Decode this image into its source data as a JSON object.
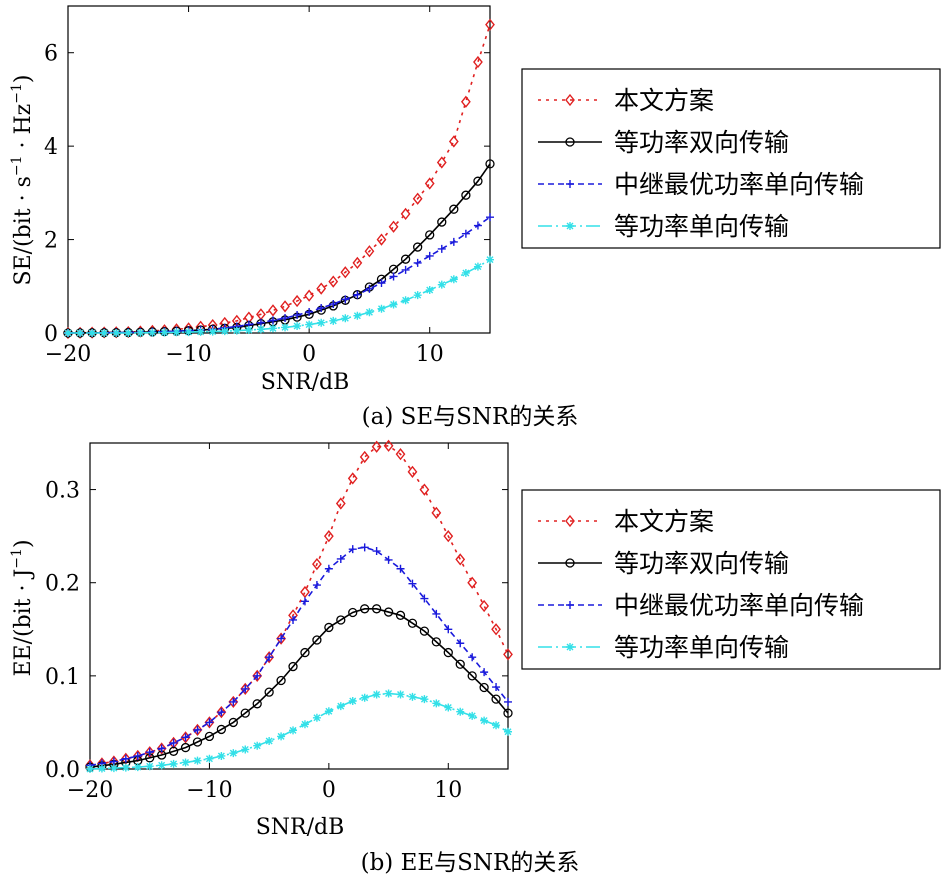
{
  "chart_data": [
    {
      "type": "line",
      "caption": "(a) SE与SNR的关系",
      "xlabel": "SNR/dB",
      "ylabel_prefix": "SE/(bit · s",
      "ylabel_sup1": "−1",
      "ylabel_mid": " · Hz",
      "ylabel_sup2": "−1",
      "ylabel_suffix": ")",
      "xlim": [
        -20,
        15
      ],
      "ylim": [
        0,
        7
      ],
      "xticks": [
        -20,
        -10,
        0,
        10
      ],
      "xtick_labels": [
        "−20",
        "−10",
        "0",
        "10"
      ],
      "yticks": [
        0,
        2,
        4,
        6
      ],
      "ytick_labels": [
        "0",
        "2",
        "4",
        "6"
      ],
      "x": [
        -20,
        15,
        1
      ],
      "series": [
        {
          "name": "本文方案",
          "color": "#e02020",
          "dash": "3,5",
          "marker": "diamond",
          "points": [
            [
              -20,
              0.0
            ],
            [
              -15,
              0.02
            ],
            [
              -12,
              0.06
            ],
            [
              -10,
              0.1
            ],
            [
              -8,
              0.17
            ],
            [
              -6,
              0.26
            ],
            [
              -4,
              0.4
            ],
            [
              -2,
              0.57
            ],
            [
              0,
              0.8
            ],
            [
              2,
              1.1
            ],
            [
              4,
              1.5
            ],
            [
              6,
              2.0
            ],
            [
              8,
              2.55
            ],
            [
              10,
              3.2
            ],
            [
              12,
              4.1
            ],
            [
              14,
              5.8
            ],
            [
              15,
              6.6
            ]
          ]
        },
        {
          "name": "等功率双向传输",
          "color": "#000000",
          "dash": "",
          "marker": "circle",
          "points": [
            [
              -20,
              0.0
            ],
            [
              -15,
              0.01
            ],
            [
              -12,
              0.03
            ],
            [
              -10,
              0.05
            ],
            [
              -8,
              0.08
            ],
            [
              -6,
              0.12
            ],
            [
              -4,
              0.2
            ],
            [
              -2,
              0.28
            ],
            [
              0,
              0.4
            ],
            [
              2,
              0.58
            ],
            [
              4,
              0.82
            ],
            [
              6,
              1.15
            ],
            [
              8,
              1.58
            ],
            [
              10,
              2.1
            ],
            [
              12,
              2.65
            ],
            [
              14,
              3.25
            ],
            [
              15,
              3.62
            ]
          ]
        },
        {
          "name": "中继最优功率单向传输",
          "color": "#1a1adc",
          "dash": "6,4",
          "marker": "plus",
          "points": [
            [
              -20,
              0.0
            ],
            [
              -15,
              0.01
            ],
            [
              -12,
              0.03
            ],
            [
              -10,
              0.05
            ],
            [
              -8,
              0.08
            ],
            [
              -6,
              0.14
            ],
            [
              -4,
              0.22
            ],
            [
              -2,
              0.32
            ],
            [
              0,
              0.45
            ],
            [
              2,
              0.62
            ],
            [
              4,
              0.82
            ],
            [
              6,
              1.07
            ],
            [
              8,
              1.35
            ],
            [
              10,
              1.65
            ],
            [
              12,
              1.95
            ],
            [
              14,
              2.3
            ],
            [
              15,
              2.48
            ]
          ]
        },
        {
          "name": "等功率单向传输",
          "color": "#33e0e8",
          "dash": "14,4,2,4",
          "marker": "star",
          "points": [
            [
              -20,
              0.0
            ],
            [
              -15,
              0.0
            ],
            [
              -12,
              0.01
            ],
            [
              -10,
              0.02
            ],
            [
              -8,
              0.03
            ],
            [
              -6,
              0.05
            ],
            [
              -4,
              0.08
            ],
            [
              -2,
              0.12
            ],
            [
              0,
              0.18
            ],
            [
              2,
              0.26
            ],
            [
              4,
              0.37
            ],
            [
              6,
              0.52
            ],
            [
              8,
              0.7
            ],
            [
              10,
              0.92
            ],
            [
              12,
              1.15
            ],
            [
              14,
              1.42
            ],
            [
              15,
              1.57
            ]
          ]
        }
      ]
    },
    {
      "type": "line",
      "caption": "(b) EE与SNR的关系",
      "xlabel": "SNR/dB",
      "ylabel_prefix": "EE/(bit · J",
      "ylabel_sup1": "−1",
      "ylabel_suffix": ")",
      "xlim": [
        -20,
        15
      ],
      "ylim": [
        0,
        0.35
      ],
      "xticks": [
        -20,
        -10,
        0,
        10
      ],
      "xtick_labels": [
        "−20",
        "−10",
        "0",
        "10"
      ],
      "yticks": [
        0,
        0.1,
        0.2,
        0.3
      ],
      "ytick_labels": [
        "0.0",
        "0.1",
        "0.2",
        "0.3"
      ],
      "series": [
        {
          "name": "本文方案",
          "color": "#e02020",
          "dash": "3,5",
          "marker": "diamond",
          "points": [
            [
              -20,
              0.004
            ],
            [
              -18,
              0.008
            ],
            [
              -16,
              0.014
            ],
            [
              -14,
              0.022
            ],
            [
              -12,
              0.034
            ],
            [
              -10,
              0.05
            ],
            [
              -8,
              0.072
            ],
            [
              -6,
              0.1
            ],
            [
              -4,
              0.14
            ],
            [
              -2,
              0.19
            ],
            [
              0,
              0.25
            ],
            [
              1,
              0.285
            ],
            [
              2,
              0.312
            ],
            [
              3,
              0.335
            ],
            [
              4,
              0.346
            ],
            [
              5,
              0.347
            ],
            [
              6,
              0.338
            ],
            [
              8,
              0.3
            ],
            [
              10,
              0.25
            ],
            [
              12,
              0.2
            ],
            [
              14,
              0.15
            ],
            [
              15,
              0.123
            ]
          ]
        },
        {
          "name": "等功率双向传输",
          "color": "#000000",
          "dash": "",
          "marker": "circle",
          "points": [
            [
              -20,
              0.002
            ],
            [
              -18,
              0.005
            ],
            [
              -16,
              0.009
            ],
            [
              -14,
              0.015
            ],
            [
              -12,
              0.023
            ],
            [
              -10,
              0.035
            ],
            [
              -8,
              0.05
            ],
            [
              -6,
              0.07
            ],
            [
              -4,
              0.095
            ],
            [
              -2,
              0.125
            ],
            [
              0,
              0.152
            ],
            [
              2,
              0.168
            ],
            [
              3,
              0.172
            ],
            [
              4,
              0.172
            ],
            [
              6,
              0.165
            ],
            [
              8,
              0.148
            ],
            [
              10,
              0.125
            ],
            [
              12,
              0.1
            ],
            [
              14,
              0.075
            ],
            [
              15,
              0.06
            ]
          ]
        },
        {
          "name": "中继最优功率单向传输",
          "color": "#1a1adc",
          "dash": "6,4",
          "marker": "plus",
          "points": [
            [
              -20,
              0.004
            ],
            [
              -18,
              0.008
            ],
            [
              -16,
              0.014
            ],
            [
              -14,
              0.022
            ],
            [
              -12,
              0.034
            ],
            [
              -10,
              0.05
            ],
            [
              -8,
              0.072
            ],
            [
              -6,
              0.1
            ],
            [
              -4,
              0.14
            ],
            [
              -2,
              0.18
            ],
            [
              0,
              0.215
            ],
            [
              2,
              0.236
            ],
            [
              3,
              0.238
            ],
            [
              4,
              0.234
            ],
            [
              6,
              0.215
            ],
            [
              8,
              0.183
            ],
            [
              10,
              0.15
            ],
            [
              12,
              0.12
            ],
            [
              14,
              0.088
            ],
            [
              15,
              0.072
            ]
          ]
        },
        {
          "name": "等功率单向传输",
          "color": "#33e0e8",
          "dash": "14,4,2,4",
          "marker": "star",
          "points": [
            [
              -20,
              0.0
            ],
            [
              -18,
              0.001
            ],
            [
              -16,
              0.002
            ],
            [
              -14,
              0.004
            ],
            [
              -12,
              0.007
            ],
            [
              -10,
              0.011
            ],
            [
              -8,
              0.017
            ],
            [
              -6,
              0.025
            ],
            [
              -4,
              0.035
            ],
            [
              -2,
              0.048
            ],
            [
              0,
              0.062
            ],
            [
              2,
              0.073
            ],
            [
              4,
              0.08
            ],
            [
              5,
              0.081
            ],
            [
              6,
              0.08
            ],
            [
              8,
              0.075
            ],
            [
              10,
              0.066
            ],
            [
              12,
              0.057
            ],
            [
              14,
              0.047
            ],
            [
              15,
              0.04
            ]
          ]
        }
      ]
    }
  ]
}
